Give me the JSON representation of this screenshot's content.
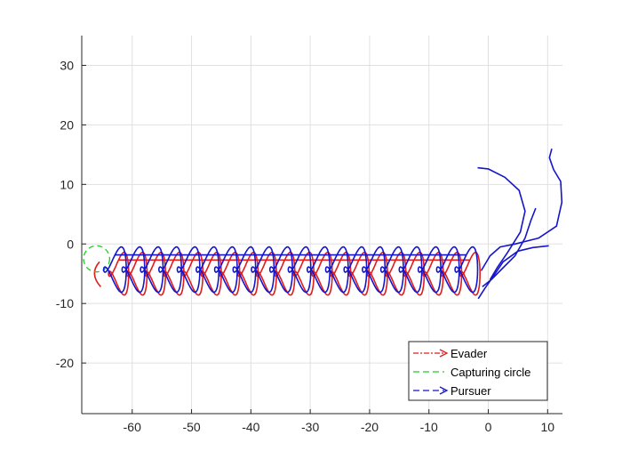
{
  "chart_data": {
    "type": "line",
    "title": "",
    "xlabel": "",
    "ylabel": "",
    "xlim": [
      -68.5,
      12.5
    ],
    "ylim": [
      -28.5,
      35
    ],
    "grid": true,
    "legend_placement": "bottom-right",
    "x_ticks": [
      -60,
      -50,
      -40,
      -30,
      -20,
      -10,
      0,
      10
    ],
    "y_ticks": [
      -20,
      -10,
      0,
      10,
      20,
      30
    ],
    "legend": [
      {
        "label": "Evader",
        "style": "dash-dot",
        "color": "#e11c1c",
        "marker": "arrow"
      },
      {
        "label": "Capturing circle",
        "style": "dashed",
        "color": "#22cc22"
      },
      {
        "label": "Pursuer",
        "style": "dashed",
        "color": "#1515cc",
        "marker": "arrow"
      }
    ],
    "series": [
      {
        "role": "evader",
        "color": "#e11c1c",
        "pattern": "figure-eight loops",
        "loop_centers_x": [
          -62.3,
          -59.2,
          -56.1,
          -53.0,
          -49.8,
          -46.7,
          -43.6,
          -40.5,
          -37.4,
          -34.3,
          -31.1,
          -28.0,
          -24.9,
          -21.8,
          -18.7,
          -15.6,
          -12.5,
          -9.3,
          -6.2,
          -3.1
        ],
        "loop_center_y": -5.0,
        "loop_rx": 1.7,
        "loop_ry": 3.3,
        "end_x": -66.5,
        "end_y": -5.0
      },
      {
        "role": "capturing-circle",
        "color": "#22cc22",
        "center": [
          -66.0,
          -2.5
        ],
        "radius": 2.2
      },
      {
        "role": "pursuer-chain",
        "color": "#1515cc",
        "pattern": "figure-eight loops",
        "loop_centers_x": [
          -62.9,
          -59.8,
          -56.7,
          -53.6,
          -50.5,
          -47.3,
          -44.2,
          -41.1,
          -38.0,
          -34.9,
          -31.8,
          -28.6,
          -25.5,
          -22.4,
          -19.3,
          -16.2,
          -13.1,
          -9.9,
          -6.8,
          -3.7
        ],
        "loop_center_y": -4.3,
        "loop_rx": 1.9,
        "loop_ry": 3.5
      },
      {
        "role": "pursuer-1",
        "color": "#1515cc",
        "points": [
          [
            10.2,
            -0.3
          ],
          [
            7.5,
            -0.6
          ],
          [
            5.0,
            -1.2
          ],
          [
            2.5,
            -3.0
          ],
          [
            0.8,
            -5.5
          ],
          [
            -0.6,
            -7.5
          ],
          [
            -1.7,
            -9.2
          ]
        ]
      },
      {
        "role": "pursuer-2",
        "color": "#1515cc",
        "points": [
          [
            8.0,
            6.0
          ],
          [
            7.2,
            4.0
          ],
          [
            6.2,
            1.0
          ],
          [
            4.5,
            -2.0
          ],
          [
            2.5,
            -4.0
          ],
          [
            0.5,
            -6.0
          ],
          [
            -1.0,
            -7.2
          ]
        ]
      },
      {
        "role": "pursuer-3",
        "color": "#1515cc",
        "points": [
          [
            -1.8,
            12.8
          ],
          [
            0.0,
            12.6
          ],
          [
            2.8,
            11.2
          ],
          [
            5.2,
            9.0
          ],
          [
            6.2,
            5.5
          ],
          [
            5.4,
            2.0
          ],
          [
            3.2,
            -1.5
          ],
          [
            1.5,
            -4.0
          ],
          [
            0.3,
            -6.0
          ]
        ]
      },
      {
        "role": "pursuer-4",
        "color": "#1515cc",
        "points": [
          [
            10.7,
            16.0
          ],
          [
            10.3,
            14.5
          ],
          [
            11.0,
            12.5
          ],
          [
            12.2,
            10.5
          ],
          [
            12.4,
            7.0
          ],
          [
            11.5,
            3.0
          ],
          [
            8.5,
            1.0
          ],
          [
            4.5,
            0.0
          ],
          [
            2.0,
            -0.5
          ],
          [
            0.3,
            -2.0
          ],
          [
            -1.2,
            -4.5
          ]
        ]
      }
    ]
  }
}
